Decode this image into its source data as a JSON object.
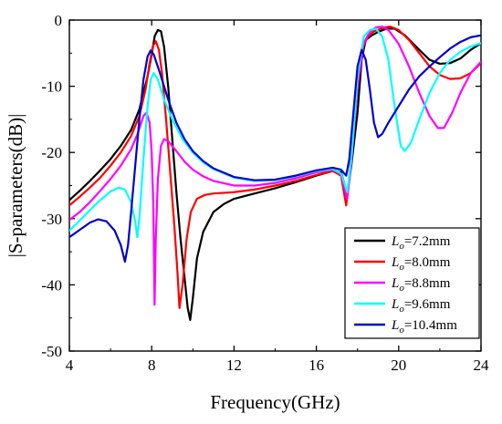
{
  "chart_data": {
    "type": "line",
    "title": "",
    "xlabel": "Frequency(GHz)",
    "ylabel": "|S-parameters(dB)|",
    "xlim": [
      4,
      24
    ],
    "ylim": [
      -50,
      0
    ],
    "xticks": [
      4,
      8,
      12,
      16,
      20,
      24
    ],
    "yticks": [
      0,
      -10,
      -20,
      -30,
      -40,
      -50
    ],
    "grid": false,
    "legend_position": "bottom-right",
    "series": [
      {
        "name": "L_o=7.2mm",
        "legend": {
          "sym": "L",
          "sub": "o",
          "rest": "=7.2mm"
        },
        "color": "#000000",
        "points": [
          [
            4.0,
            -27.2
          ],
          [
            4.5,
            -25.8
          ],
          [
            5.0,
            -24.3
          ],
          [
            5.5,
            -22.7
          ],
          [
            6.0,
            -21.0
          ],
          [
            6.5,
            -19.0
          ],
          [
            7.0,
            -16.6
          ],
          [
            7.4,
            -13.5
          ],
          [
            7.8,
            -8.5
          ],
          [
            8.0,
            -5.2
          ],
          [
            8.15,
            -2.4
          ],
          [
            8.3,
            -1.5
          ],
          [
            8.45,
            -1.7
          ],
          [
            8.6,
            -4.0
          ],
          [
            8.8,
            -10.0
          ],
          [
            9.0,
            -18.0
          ],
          [
            9.2,
            -26.0
          ],
          [
            9.4,
            -33.0
          ],
          [
            9.6,
            -39.0
          ],
          [
            9.75,
            -43.5
          ],
          [
            9.87,
            -45.3
          ],
          [
            10.0,
            -42.0
          ],
          [
            10.2,
            -36.0
          ],
          [
            10.5,
            -32.0
          ],
          [
            11.0,
            -29.0
          ],
          [
            11.5,
            -27.8
          ],
          [
            12.0,
            -27.0
          ],
          [
            13.0,
            -26.2
          ],
          [
            14.0,
            -25.4
          ],
          [
            15.0,
            -24.5
          ],
          [
            16.0,
            -23.5
          ],
          [
            16.8,
            -22.8
          ],
          [
            17.2,
            -23.0
          ],
          [
            17.5,
            -26.2
          ],
          [
            17.7,
            -22.0
          ],
          [
            18.0,
            -14.0
          ],
          [
            18.2,
            -6.0
          ],
          [
            18.4,
            -3.0
          ],
          [
            18.7,
            -2.3
          ],
          [
            19.0,
            -1.8
          ],
          [
            19.4,
            -1.3
          ],
          [
            19.8,
            -1.3
          ],
          [
            20.3,
            -2.3
          ],
          [
            21.0,
            -4.5
          ],
          [
            21.5,
            -6.0
          ],
          [
            22.0,
            -6.6
          ],
          [
            22.5,
            -6.5
          ],
          [
            23.0,
            -5.8
          ],
          [
            23.5,
            -4.5
          ],
          [
            24.0,
            -3.5
          ]
        ]
      },
      {
        "name": "L_o=8.0mm",
        "legend": {
          "sym": "L",
          "sub": "o",
          "rest": "=8.0mm"
        },
        "color": "#ff0000",
        "points": [
          [
            4.0,
            -28.0
          ],
          [
            4.5,
            -26.7
          ],
          [
            5.0,
            -25.3
          ],
          [
            5.5,
            -23.8
          ],
          [
            6.0,
            -22.0
          ],
          [
            6.5,
            -20.0
          ],
          [
            7.0,
            -17.5
          ],
          [
            7.4,
            -14.5
          ],
          [
            7.7,
            -10.5
          ],
          [
            7.9,
            -6.5
          ],
          [
            8.05,
            -4.0
          ],
          [
            8.2,
            -3.2
          ],
          [
            8.35,
            -4.5
          ],
          [
            8.5,
            -8.0
          ],
          [
            8.7,
            -15.0
          ],
          [
            8.9,
            -23.0
          ],
          [
            9.1,
            -31.0
          ],
          [
            9.25,
            -38.0
          ],
          [
            9.35,
            -43.5
          ],
          [
            9.5,
            -40.0
          ],
          [
            9.7,
            -33.0
          ],
          [
            9.9,
            -29.0
          ],
          [
            10.2,
            -27.0
          ],
          [
            10.6,
            -26.4
          ],
          [
            11.0,
            -26.2
          ],
          [
            12.0,
            -26.0
          ],
          [
            13.0,
            -25.6
          ],
          [
            14.0,
            -25.0
          ],
          [
            15.0,
            -24.3
          ],
          [
            16.0,
            -23.4
          ],
          [
            16.8,
            -22.8
          ],
          [
            17.2,
            -23.5
          ],
          [
            17.45,
            -28.0
          ],
          [
            17.6,
            -24.0
          ],
          [
            17.9,
            -12.0
          ],
          [
            18.2,
            -4.5
          ],
          [
            18.5,
            -2.5
          ],
          [
            18.8,
            -1.7
          ],
          [
            19.3,
            -1.1
          ],
          [
            19.6,
            -1.0
          ],
          [
            20.0,
            -1.5
          ],
          [
            20.5,
            -3.0
          ],
          [
            21.0,
            -5.0
          ],
          [
            21.5,
            -7.0
          ],
          [
            22.0,
            -8.3
          ],
          [
            22.5,
            -8.9
          ],
          [
            23.0,
            -8.8
          ],
          [
            23.5,
            -8.0
          ],
          [
            24.0,
            -6.5
          ]
        ]
      },
      {
        "name": "L_o=8.8mm",
        "legend": {
          "sym": "L",
          "sub": "o",
          "rest": "=8.8mm"
        },
        "color": "#ff00ff",
        "points": [
          [
            4.0,
            -30.2
          ],
          [
            4.5,
            -29.0
          ],
          [
            5.0,
            -27.5
          ],
          [
            5.5,
            -25.8
          ],
          [
            6.0,
            -24.0
          ],
          [
            6.5,
            -22.0
          ],
          [
            7.0,
            -19.5
          ],
          [
            7.3,
            -17.3
          ],
          [
            7.6,
            -14.5
          ],
          [
            7.75,
            -14.0
          ],
          [
            7.9,
            -15.5
          ],
          [
            8.0,
            -20.0
          ],
          [
            8.08,
            -28.0
          ],
          [
            8.14,
            -43.0
          ],
          [
            8.2,
            -33.0
          ],
          [
            8.3,
            -24.0
          ],
          [
            8.45,
            -19.0
          ],
          [
            8.6,
            -18.0
          ],
          [
            8.8,
            -18.3
          ],
          [
            9.2,
            -19.8
          ],
          [
            9.6,
            -21.4
          ],
          [
            10.0,
            -22.6
          ],
          [
            10.5,
            -23.6
          ],
          [
            11.0,
            -24.3
          ],
          [
            12.0,
            -25.0
          ],
          [
            13.0,
            -25.0
          ],
          [
            14.0,
            -24.6
          ],
          [
            15.0,
            -23.9
          ],
          [
            16.0,
            -23.0
          ],
          [
            16.8,
            -22.6
          ],
          [
            17.2,
            -23.3
          ],
          [
            17.5,
            -27.0
          ],
          [
            17.7,
            -21.5
          ],
          [
            18.0,
            -10.0
          ],
          [
            18.3,
            -3.5
          ],
          [
            18.6,
            -1.8
          ],
          [
            18.9,
            -1.1
          ],
          [
            19.2,
            -1.0
          ],
          [
            19.5,
            -1.5
          ],
          [
            20.0,
            -3.6
          ],
          [
            20.5,
            -7.0
          ],
          [
            21.0,
            -11.0
          ],
          [
            21.5,
            -14.5
          ],
          [
            21.9,
            -16.3
          ],
          [
            22.2,
            -16.3
          ],
          [
            22.6,
            -14.0
          ],
          [
            23.0,
            -11.0
          ],
          [
            23.5,
            -8.0
          ],
          [
            24.0,
            -6.3
          ]
        ]
      },
      {
        "name": "L_o=9.6mm",
        "legend": {
          "sym": "L",
          "sub": "o",
          "rest": "=9.6mm"
        },
        "color": "#00ffff",
        "points": [
          [
            4.0,
            -31.8
          ],
          [
            4.5,
            -30.3
          ],
          [
            5.0,
            -28.7
          ],
          [
            5.5,
            -27.2
          ],
          [
            6.0,
            -25.9
          ],
          [
            6.4,
            -25.3
          ],
          [
            6.7,
            -25.6
          ],
          [
            7.0,
            -27.5
          ],
          [
            7.2,
            -30.5
          ],
          [
            7.3,
            -32.8
          ],
          [
            7.4,
            -30.0
          ],
          [
            7.6,
            -21.0
          ],
          [
            7.8,
            -13.0
          ],
          [
            7.95,
            -9.0
          ],
          [
            8.1,
            -8.0
          ],
          [
            8.3,
            -9.0
          ],
          [
            8.6,
            -12.0
          ],
          [
            9.0,
            -15.0
          ],
          [
            9.5,
            -18.0
          ],
          [
            10.0,
            -20.0
          ],
          [
            10.5,
            -21.5
          ],
          [
            11.0,
            -22.5
          ],
          [
            12.0,
            -23.8
          ],
          [
            13.0,
            -24.3
          ],
          [
            14.0,
            -24.2
          ],
          [
            15.0,
            -23.6
          ],
          [
            16.0,
            -22.8
          ],
          [
            16.8,
            -22.5
          ],
          [
            17.2,
            -23.2
          ],
          [
            17.5,
            -26.0
          ],
          [
            17.7,
            -21.0
          ],
          [
            18.0,
            -8.5
          ],
          [
            18.3,
            -2.5
          ],
          [
            18.6,
            -1.5
          ],
          [
            18.9,
            -1.3
          ],
          [
            19.2,
            -2.5
          ],
          [
            19.5,
            -6.0
          ],
          [
            19.8,
            -13.0
          ],
          [
            20.1,
            -19.0
          ],
          [
            20.3,
            -19.8
          ],
          [
            20.6,
            -18.5
          ],
          [
            21.0,
            -15.0
          ],
          [
            21.5,
            -11.0
          ],
          [
            22.0,
            -8.0
          ],
          [
            22.5,
            -6.0
          ],
          [
            23.0,
            -4.8
          ],
          [
            23.5,
            -4.0
          ],
          [
            24.0,
            -3.5
          ]
        ]
      },
      {
        "name": "L_o=10.4mm",
        "legend": {
          "sym": "L",
          "sub": "o",
          "rest": "=10.4mm"
        },
        "color": "#0000cc",
        "points": [
          [
            4.0,
            -32.8
          ],
          [
            4.5,
            -31.7
          ],
          [
            5.0,
            -30.6
          ],
          [
            5.4,
            -30.1
          ],
          [
            5.8,
            -30.4
          ],
          [
            6.2,
            -31.8
          ],
          [
            6.5,
            -34.0
          ],
          [
            6.7,
            -36.5
          ],
          [
            6.85,
            -34.0
          ],
          [
            7.0,
            -29.0
          ],
          [
            7.2,
            -22.0
          ],
          [
            7.4,
            -15.0
          ],
          [
            7.6,
            -9.0
          ],
          [
            7.8,
            -5.5
          ],
          [
            7.95,
            -4.6
          ],
          [
            8.1,
            -5.2
          ],
          [
            8.4,
            -8.0
          ],
          [
            8.8,
            -12.0
          ],
          [
            9.2,
            -15.5
          ],
          [
            9.6,
            -18.0
          ],
          [
            10.0,
            -19.8
          ],
          [
            10.5,
            -21.3
          ],
          [
            11.0,
            -22.4
          ],
          [
            12.0,
            -23.7
          ],
          [
            13.0,
            -24.2
          ],
          [
            14.0,
            -24.1
          ],
          [
            15.0,
            -23.5
          ],
          [
            16.0,
            -22.7
          ],
          [
            16.8,
            -22.3
          ],
          [
            17.2,
            -22.6
          ],
          [
            17.45,
            -23.5
          ],
          [
            17.6,
            -21.0
          ],
          [
            17.8,
            -14.0
          ],
          [
            18.0,
            -7.0
          ],
          [
            18.2,
            -4.5
          ],
          [
            18.4,
            -6.0
          ],
          [
            18.6,
            -10.5
          ],
          [
            18.8,
            -15.5
          ],
          [
            19.0,
            -17.7
          ],
          [
            19.2,
            -17.2
          ],
          [
            19.5,
            -15.5
          ],
          [
            20.0,
            -13.0
          ],
          [
            20.5,
            -10.5
          ],
          [
            21.0,
            -8.5
          ],
          [
            21.5,
            -7.0
          ],
          [
            22.0,
            -5.6
          ],
          [
            22.5,
            -4.3
          ],
          [
            23.0,
            -3.3
          ],
          [
            23.5,
            -2.6
          ],
          [
            24.0,
            -2.3
          ]
        ]
      }
    ]
  }
}
